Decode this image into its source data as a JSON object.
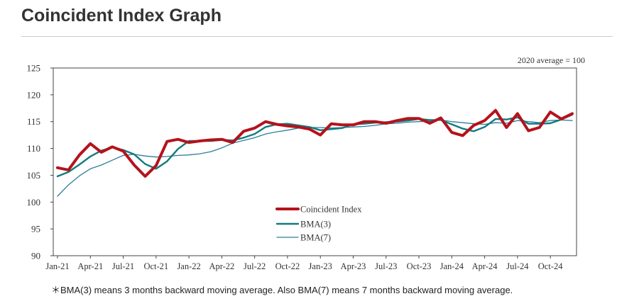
{
  "page": {
    "title": "Coincident Index Graph",
    "footnote": "＊BMA(3) means 3 months backward moving average. Also BMA(7) means 7 months backward moving average."
  },
  "chart_data": {
    "type": "line",
    "title": "",
    "xlabel": "",
    "ylabel": "",
    "note": "2020 average = 100",
    "ylim": [
      90,
      125
    ],
    "yticks": [
      90,
      95,
      100,
      105,
      110,
      115,
      120,
      125
    ],
    "x": [
      "Jan-21",
      "Feb-21",
      "Mar-21",
      "Apr-21",
      "May-21",
      "Jun-21",
      "Jul-21",
      "Aug-21",
      "Sep-21",
      "Oct-21",
      "Nov-21",
      "Dec-21",
      "Jan-22",
      "Feb-22",
      "Mar-22",
      "Apr-22",
      "May-22",
      "Jun-22",
      "Jul-22",
      "Aug-22",
      "Sep-22",
      "Oct-22",
      "Nov-22",
      "Dec-22",
      "Jan-23",
      "Feb-23",
      "Mar-23",
      "Apr-23",
      "May-23",
      "Jun-23",
      "Jul-23",
      "Aug-23",
      "Sep-23",
      "Oct-23",
      "Nov-23",
      "Dec-23",
      "Jan-24",
      "Feb-24",
      "Mar-24",
      "Apr-24",
      "May-24",
      "Jun-24",
      "Jul-24",
      "Aug-24",
      "Sep-24",
      "Oct-24",
      "Nov-24",
      "Dec-24"
    ],
    "x_tick_labels": [
      "Jan-21",
      "Apr-21",
      "Jul-21",
      "Oct-21",
      "Jan-22",
      "Apr-22",
      "Jul-22",
      "Oct-22",
      "Jan-23",
      "Apr-23",
      "Jul-23",
      "Oct-23",
      "Jan-24",
      "Apr-24",
      "Jul-24",
      "Oct-24"
    ],
    "series": [
      {
        "name": "Coincident Index",
        "color": "#b5121b",
        "values": [
          106.4,
          106.0,
          108.8,
          110.9,
          109.3,
          110.3,
          109.5,
          106.9,
          104.8,
          106.8,
          111.3,
          111.7,
          111.1,
          111.4,
          111.6,
          111.7,
          111.1,
          113.2,
          113.8,
          115.0,
          114.5,
          114.2,
          114.0,
          113.6,
          112.5,
          114.6,
          114.4,
          114.4,
          115.0,
          115.0,
          114.7,
          115.2,
          115.6,
          115.6,
          114.7,
          115.7,
          113.0,
          112.4,
          114.3,
          115.2,
          117.1,
          113.9,
          116.5,
          113.3,
          113.9,
          116.8,
          115.5,
          116.5
        ]
      },
      {
        "name": "BMA(3)",
        "color": "#137a7f",
        "values": [
          104.8,
          105.6,
          107.0,
          108.5,
          109.6,
          110.2,
          109.7,
          108.9,
          107.1,
          106.2,
          107.6,
          109.9,
          111.4,
          111.4,
          111.4,
          111.6,
          111.5,
          112.0,
          112.7,
          114.0,
          114.5,
          114.6,
          114.3,
          114.0,
          113.4,
          113.6,
          113.8,
          114.5,
          114.6,
          114.8,
          114.9,
          115.0,
          115.2,
          115.5,
          115.3,
          115.3,
          114.5,
          113.7,
          113.2,
          114.0,
          115.5,
          115.4,
          115.8,
          114.6,
          114.6,
          114.7,
          115.4,
          116.3
        ]
      },
      {
        "name": "BMA(7)",
        "color": "#2d7d9a",
        "values": [
          101.1,
          103.2,
          104.9,
          106.2,
          106.9,
          107.8,
          108.7,
          108.9,
          108.6,
          108.4,
          108.5,
          108.7,
          108.8,
          109.0,
          109.4,
          110.1,
          111.0,
          111.5,
          112.0,
          112.7,
          113.1,
          113.4,
          113.8,
          113.9,
          113.9,
          113.8,
          113.9,
          114.0,
          114.1,
          114.3,
          114.6,
          114.7,
          114.9,
          115.0,
          115.1,
          115.3,
          115.0,
          114.8,
          114.6,
          114.5,
          114.8,
          114.7,
          115.2,
          115.0,
          114.8,
          115.2,
          115.3,
          115.2
        ]
      }
    ],
    "legend": {
      "placement": "bottom-center"
    },
    "grid": false
  }
}
